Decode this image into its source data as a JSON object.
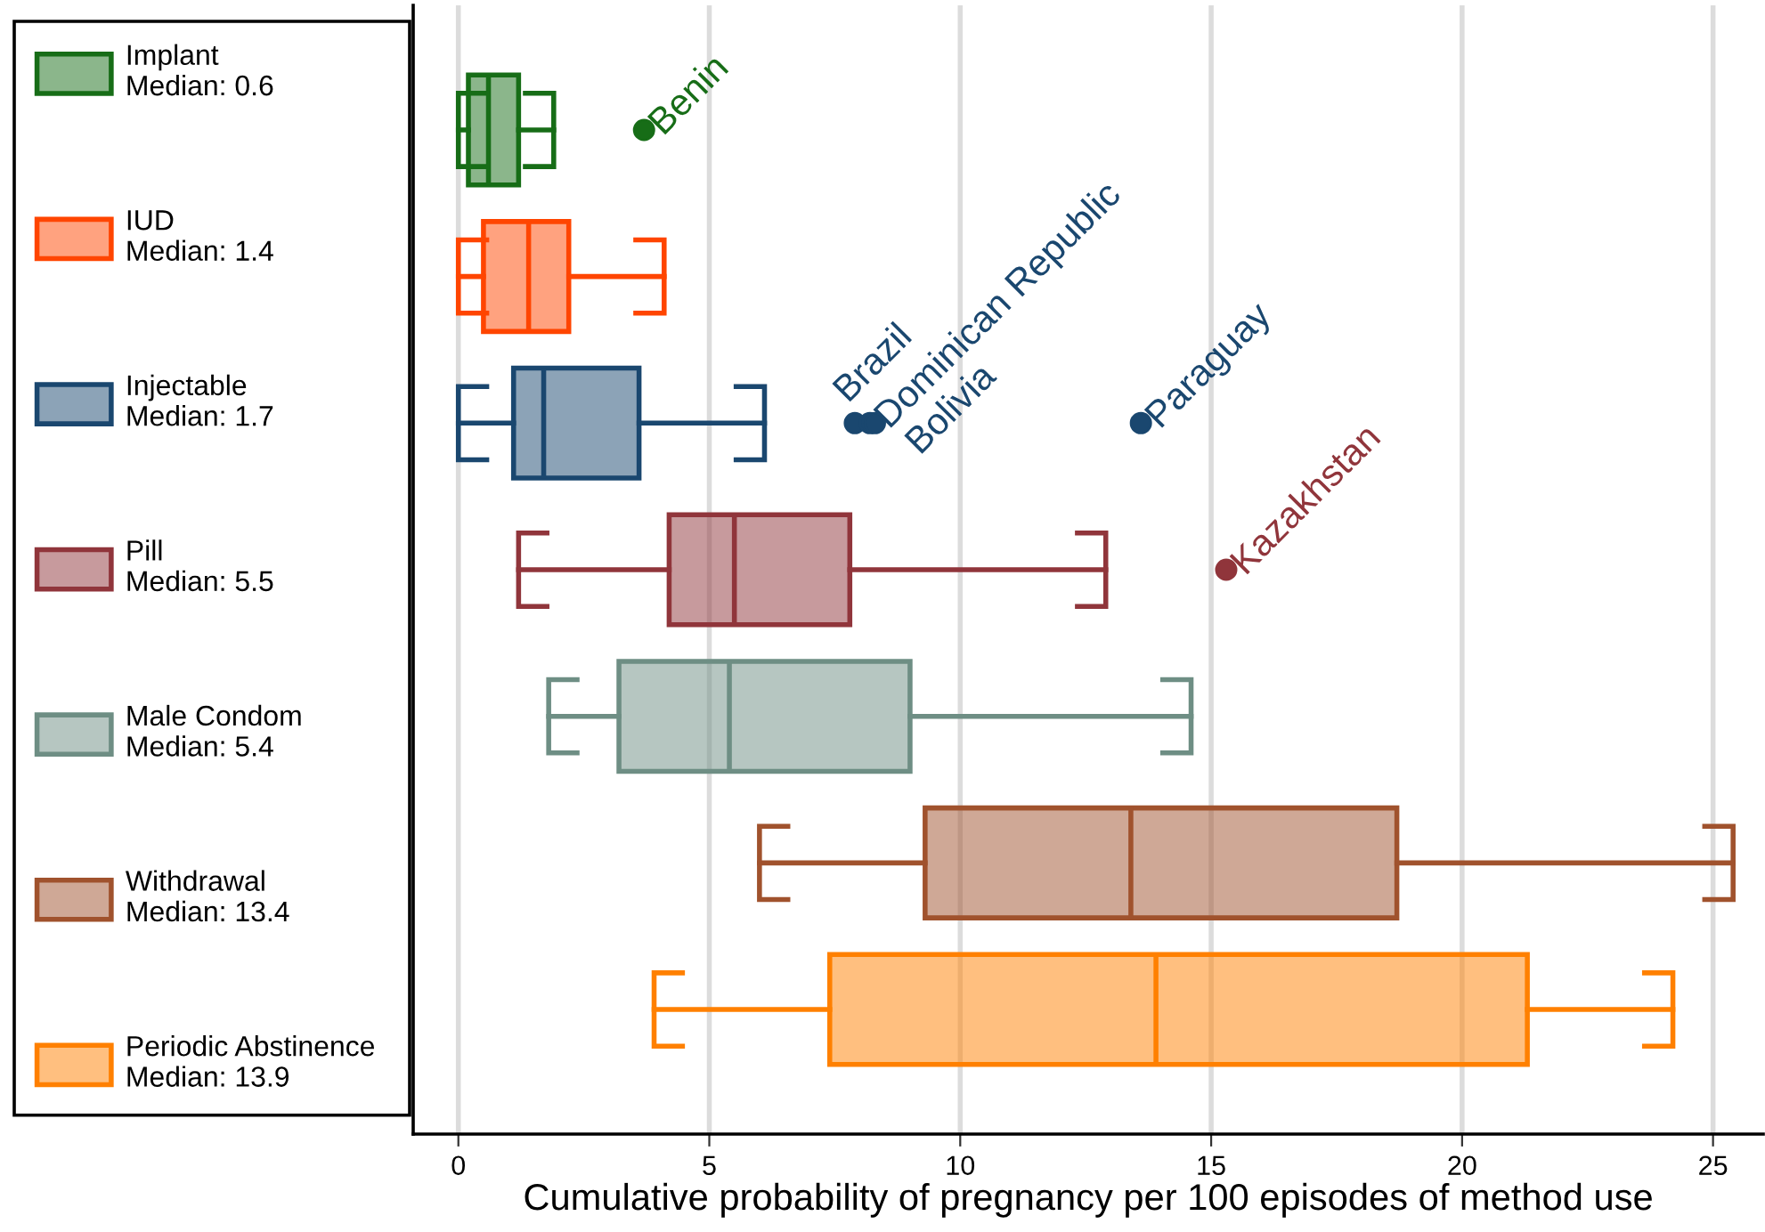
{
  "chart_data": {
    "type": "box",
    "orientation": "horizontal",
    "categories": [
      null
    ],
    "series": [
      {
        "name": "Implant\nMedian: 0.6",
        "color": "#176d17",
        "boxes": [
          {
            "low": 0,
            "q1": 0.2,
            "median": 0.6,
            "q3": 1.2,
            "high": 1.9,
            "outliers": [
              3.7
            ]
          }
        ]
      },
      {
        "name": "IUD\nMedian: 1.4",
        "color": "#ff4500",
        "boxes": [
          {
            "low": 0,
            "q1": 0.5,
            "median": 1.4,
            "q3": 2.2,
            "high": 4.1
          }
        ]
      },
      {
        "name": "Injectable\nMedian: 1.7",
        "color": "#1a476f",
        "boxes": [
          {
            "low": 0,
            "q1": 1.1,
            "median": 1.7,
            "q3": 3.6,
            "high": 6.1,
            "outliers": [
              7.9,
              8.2,
              8.3,
              13.6
            ]
          }
        ]
      },
      {
        "name": "Pill\nMedian: 5.5",
        "color": "#90353b",
        "boxes": [
          {
            "low": 1.2,
            "q1": 4.2,
            "median": 5.5,
            "q3": 7.8,
            "high": 12.9,
            "outliers": [
              15.3
            ]
          }
        ]
      },
      {
        "name": "Male Condom\nMedian: 5.4",
        "color": "#6e8e84",
        "boxes": [
          {
            "low": 1.8,
            "q1": 3.2,
            "median": 5.4,
            "q3": 9.0,
            "high": 14.6
          }
        ]
      },
      {
        "name": "Withdrawal\nMedian: 13.4",
        "color": "#a0522d",
        "boxes": [
          {
            "low": 6.0,
            "q1": 9.3,
            "median": 13.4,
            "q3": 18.7,
            "high": 25.4
          }
        ]
      },
      {
        "name": "Periodic Abstinence\nMedian: 13.9",
        "color": "#ff8000",
        "boxes": [
          {
            "low": 3.9,
            "q1": 7.4,
            "median": 13.9,
            "q3": 21.3,
            "high": 24.2
          }
        ]
      }
    ],
    "xlabel": "Cumulative probability of pregnancy per 100 episodes of method use",
    "xlim": [
      -0.9,
      26
    ],
    "xticks": [
      0,
      5,
      10,
      15,
      20,
      25
    ],
    "grid": "x",
    "legend": "left",
    "tick_labels": "x",
    "marker": "circle",
    "annotations": [
      "Benin",
      "Brazil",
      "Dominican Republic",
      "Bolivia",
      "Paraguay",
      "Kazakhstan"
    ]
  }
}
